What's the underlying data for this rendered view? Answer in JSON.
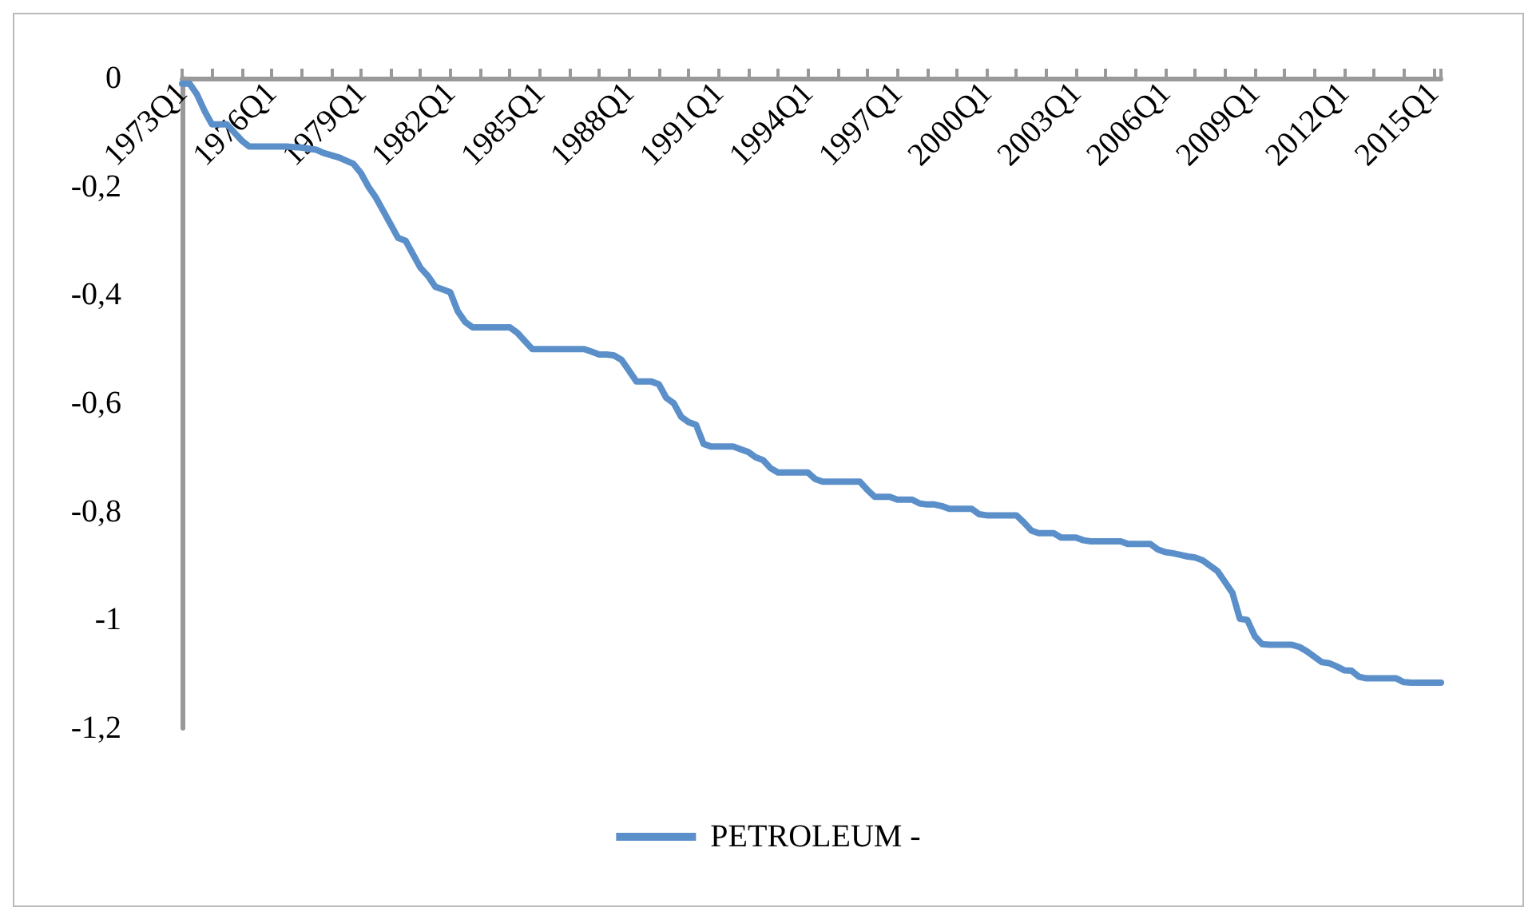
{
  "chart_data": {
    "type": "line",
    "categories": [
      "1973Q1",
      null,
      null,
      null,
      null,
      null,
      null,
      null,
      null,
      null,
      null,
      null,
      "1976Q1",
      null,
      null,
      null,
      null,
      null,
      null,
      null,
      null,
      null,
      null,
      null,
      "1979Q1",
      null,
      null,
      null,
      null,
      null,
      null,
      null,
      null,
      null,
      null,
      null,
      "1982Q1",
      null,
      null,
      null,
      null,
      null,
      null,
      null,
      null,
      null,
      null,
      null,
      "1985Q1",
      null,
      null,
      null,
      null,
      null,
      null,
      null,
      null,
      null,
      null,
      null,
      "1988Q1",
      null,
      null,
      null,
      null,
      null,
      null,
      null,
      null,
      null,
      null,
      null,
      "1991Q1",
      null,
      null,
      null,
      null,
      null,
      null,
      null,
      null,
      null,
      null,
      null,
      "1994Q1",
      null,
      null,
      null,
      null,
      null,
      null,
      null,
      null,
      null,
      null,
      null,
      "1997Q1",
      null,
      null,
      null,
      null,
      null,
      null,
      null,
      null,
      null,
      null,
      null,
      "2000Q1",
      null,
      null,
      null,
      null,
      null,
      null,
      null,
      null,
      null,
      null,
      null,
      "2003Q1",
      null,
      null,
      null,
      null,
      null,
      null,
      null,
      null,
      null,
      null,
      null,
      "2006Q1",
      null,
      null,
      null,
      null,
      null,
      null,
      null,
      null,
      null,
      null,
      null,
      "2009Q1",
      null,
      null,
      null,
      null,
      null,
      null,
      null,
      null,
      null,
      null,
      null,
      "2012Q1",
      null,
      null,
      null,
      null,
      null,
      null,
      null,
      null,
      null,
      null,
      null,
      "2015Q1",
      null
    ],
    "series": [
      {
        "name": "PETROLEUM -",
        "color": "#5b8fc9",
        "values": [
          -0.01,
          -0.01,
          -0.03,
          -0.06,
          -0.085,
          -0.085,
          -0.085,
          -0.1,
          -0.115,
          -0.126,
          -0.126,
          -0.126,
          -0.126,
          -0.126,
          -0.126,
          -0.127,
          -0.128,
          -0.13,
          -0.132,
          -0.138,
          -0.142,
          -0.146,
          -0.152,
          -0.158,
          -0.175,
          -0.2,
          -0.22,
          -0.245,
          -0.27,
          -0.295,
          -0.3,
          -0.325,
          -0.35,
          -0.365,
          -0.385,
          -0.39,
          -0.395,
          -0.43,
          -0.45,
          -0.46,
          -0.46,
          -0.46,
          -0.46,
          -0.46,
          -0.46,
          -0.47,
          -0.485,
          -0.5,
          -0.5,
          -0.5,
          -0.5,
          -0.5,
          -0.5,
          -0.5,
          -0.5,
          -0.505,
          -0.51,
          -0.51,
          -0.512,
          -0.52,
          -0.54,
          -0.56,
          -0.56,
          -0.56,
          -0.565,
          -0.59,
          -0.6,
          -0.625,
          -0.635,
          -0.64,
          -0.675,
          -0.68,
          -0.68,
          -0.68,
          -0.68,
          -0.685,
          -0.69,
          -0.7,
          -0.705,
          -0.72,
          -0.728,
          -0.728,
          -0.728,
          -0.728,
          -0.728,
          -0.74,
          -0.745,
          -0.745,
          -0.745,
          -0.745,
          -0.745,
          -0.745,
          -0.76,
          -0.773,
          -0.773,
          -0.773,
          -0.778,
          -0.778,
          -0.778,
          -0.785,
          -0.787,
          -0.787,
          -0.79,
          -0.795,
          -0.795,
          -0.795,
          -0.795,
          -0.805,
          -0.807,
          -0.807,
          -0.807,
          -0.807,
          -0.807,
          -0.82,
          -0.835,
          -0.84,
          -0.84,
          -0.84,
          -0.848,
          -0.848,
          -0.848,
          -0.853,
          -0.855,
          -0.855,
          -0.855,
          -0.855,
          -0.855,
          -0.86,
          -0.86,
          -0.86,
          -0.86,
          -0.87,
          -0.875,
          -0.877,
          -0.88,
          -0.883,
          -0.885,
          -0.89,
          -0.9,
          -0.91,
          -0.93,
          -0.95,
          -0.998,
          -1.0,
          -1.03,
          -1.045,
          -1.046,
          -1.046,
          -1.046,
          -1.046,
          -1.05,
          -1.058,
          -1.068,
          -1.078,
          -1.08,
          -1.086,
          -1.093,
          -1.094,
          -1.105,
          -1.108,
          -1.108,
          -1.108,
          -1.108,
          -1.108,
          -1.115,
          -1.116,
          -1.116,
          -1.116,
          -1.116,
          -1.116
        ]
      }
    ],
    "ylim": [
      -1.2,
      0
    ],
    "yticks": [
      0,
      {
        "value": -0.2,
        "label": "-0,2"
      },
      {
        "value": -0.4,
        "label": "-0,4"
      },
      {
        "value": -0.6,
        "label": "-0,6"
      },
      {
        "value": -0.8,
        "label": "-0,8"
      },
      -1,
      {
        "value": -1.2,
        "label": "-1,2"
      }
    ],
    "grid": false,
    "legend": "bottom",
    "marker": "none",
    "line_style": "solid"
  }
}
